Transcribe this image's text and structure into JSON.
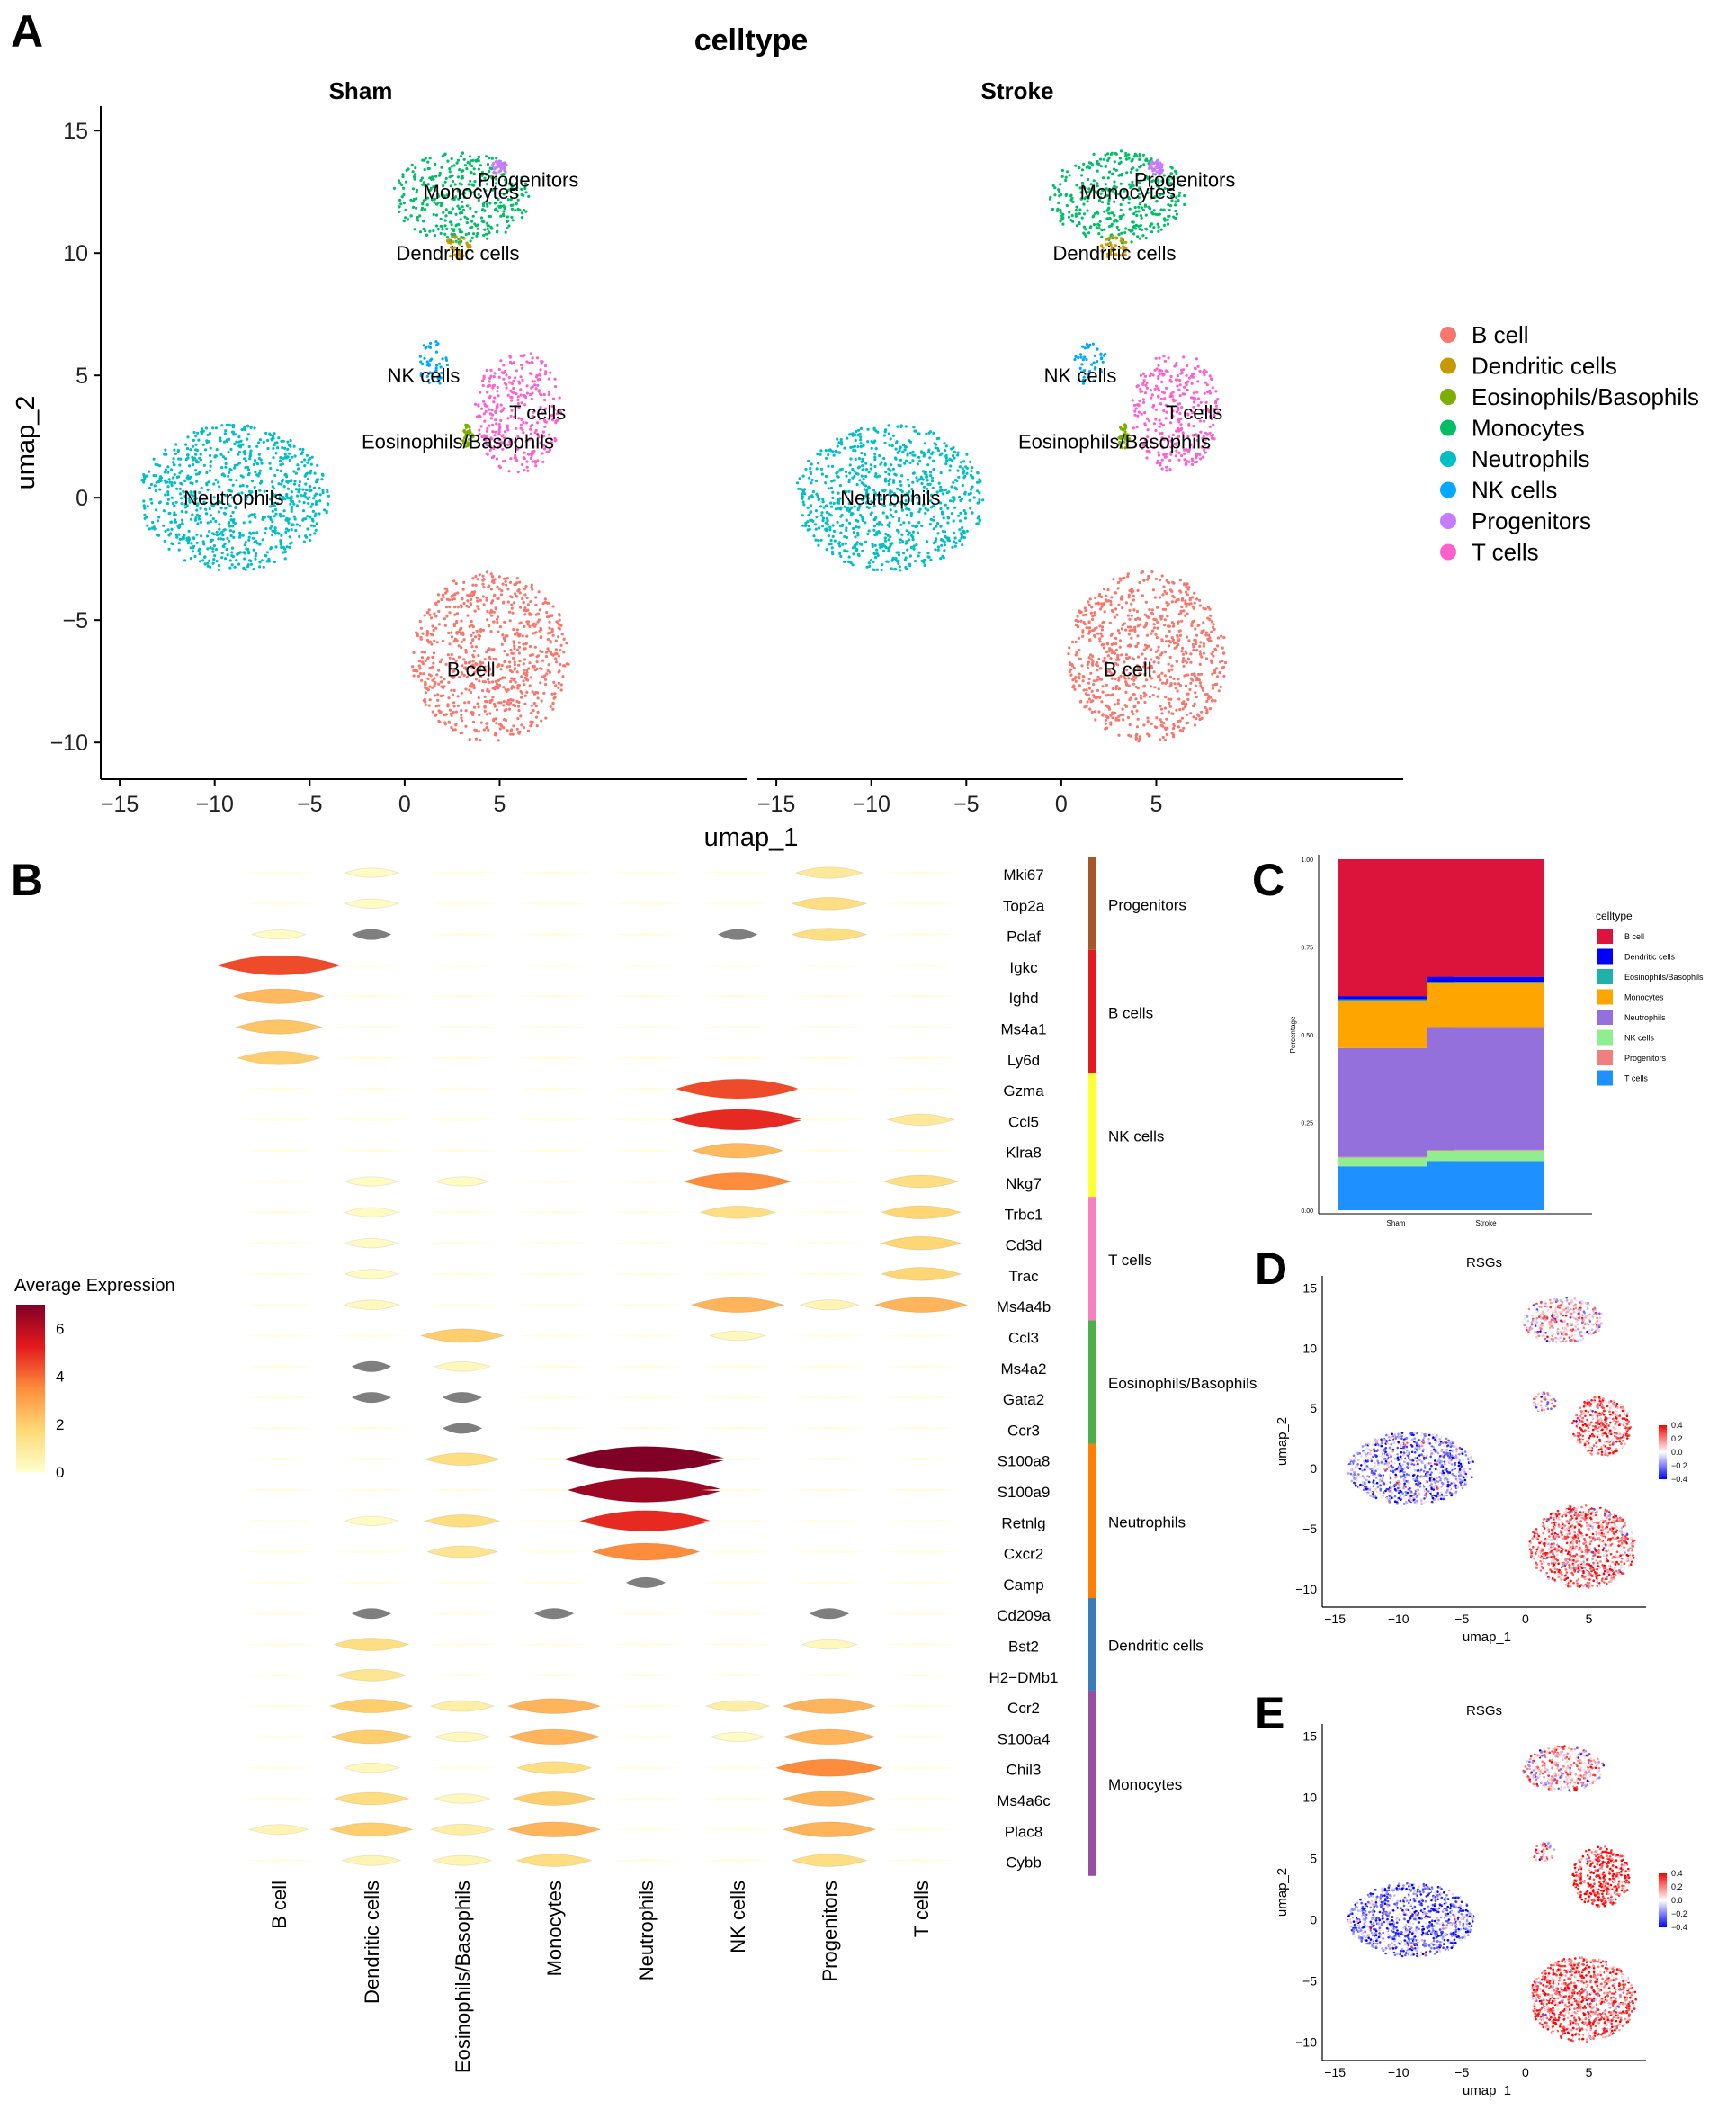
{
  "colors": {
    "B cell": "#F8766D",
    "Dendritic cells": "#C49A00",
    "Eosinophils/Basophils": "#7CAE00",
    "Monocytes": "#00BE67",
    "Neutrophils": "#00BFC4",
    "NK cells": "#00A9FF",
    "Progenitors": "#C77CFF",
    "T cells": "#FF61CC"
  },
  "chart_data": [
    {
      "panel": "A",
      "type": "scatter",
      "title": "celltype",
      "facets": [
        "Sham",
        "Stroke"
      ],
      "xlabel": "umap_1",
      "ylabel": "umap_2",
      "xlim": [
        -16,
        18
      ],
      "ylim": [
        -11.5,
        16
      ],
      "xticks": [
        "−15",
        "−10",
        "−5",
        "0",
        "5"
      ],
      "xtick_values": [
        -15,
        -10,
        -5,
        0,
        5
      ],
      "yticks": [
        "15",
        "10",
        "5",
        "0",
        "−5",
        "−10"
      ],
      "ytick_values": [
        15,
        10,
        5,
        0,
        -5,
        -10
      ],
      "legend": [
        "B cell",
        "Dendritic cells",
        "Eosinophils/Basophils",
        "Monocytes",
        "Neutrophils",
        "NK cells",
        "Progenitors",
        "T cells"
      ],
      "clusters": [
        {
          "name": "Neutrophils",
          "cx": -9,
          "cy": 0,
          "rx": 5,
          "ry": 3
        },
        {
          "name": "B cell",
          "cx": 4.5,
          "cy": -6.5,
          "rx": 4.2,
          "ry": 3.5
        },
        {
          "name": "Monocytes",
          "cx": 3,
          "cy": 12.3,
          "rx": 3.6,
          "ry": 1.9
        },
        {
          "name": "T cells",
          "cx": 6,
          "cy": 3.5,
          "rx": 2.3,
          "ry": 2.5
        },
        {
          "name": "NK cells",
          "cx": 1.5,
          "cy": 5.5,
          "rx": 0.9,
          "ry": 0.9
        },
        {
          "name": "Dendritic cells",
          "cx": 2.8,
          "cy": 10.2,
          "rx": 0.7,
          "ry": 0.5
        },
        {
          "name": "Eosinophils/Basophils",
          "cx": 3.3,
          "cy": 2.5,
          "rx": 0.3,
          "ry": 0.5
        },
        {
          "name": "Progenitors",
          "cx": 5,
          "cy": 13.5,
          "rx": 0.4,
          "ry": 0.3
        }
      ],
      "labels": [
        {
          "text": "Neutrophils",
          "x": -9,
          "y": 0
        },
        {
          "text": "B cell",
          "x": 3.5,
          "y": -7
        },
        {
          "text": "Monocytes",
          "x": 3.5,
          "y": 12.5
        },
        {
          "text": "Progenitors",
          "x": 6.5,
          "y": 13
        },
        {
          "text": "Dendritic cells",
          "x": 2.8,
          "y": 10
        },
        {
          "text": "NK cells",
          "x": 1,
          "y": 5
        },
        {
          "text": "T cells",
          "x": 7,
          "y": 3.5
        },
        {
          "text": "Eosinophils/Basophils",
          "x": 2.8,
          "y": 2.3
        }
      ]
    },
    {
      "panel": "B",
      "type": "violin",
      "legend_title": "Average Expression",
      "colorbar_ticks": [
        "6",
        "4",
        "2",
        "0"
      ],
      "colorbar_tick_values": [
        6,
        4,
        2,
        0
      ],
      "colorbar_range": [
        0,
        7
      ],
      "celltypes": [
        "B cell",
        "Dendritic cells",
        "Eosinophils/Basophils",
        "Monocytes",
        "Neutrophils",
        "NK cells",
        "Progenitors",
        "T cells"
      ],
      "genes": [
        "Mki67",
        "Top2a",
        "Pclaf",
        "Igkc",
        "Ighd",
        "Ms4a1",
        "Ly6d",
        "Gzma",
        "Ccl5",
        "Klra8",
        "Nkg7",
        "Trbc1",
        "Cd3d",
        "Trac",
        "Ms4a4b",
        "Ccl3",
        "Ms4a2",
        "Gata2",
        "Ccr3",
        "S100a8",
        "S100a9",
        "Retnlg",
        "Cxcr2",
        "Camp",
        "Cd209a",
        "Bst2",
        "H2−DMb1",
        "Ccr2",
        "S100a4",
        "Chil3",
        "Ms4a6c",
        "Plac8",
        "Cybb"
      ],
      "gene_labels_visible": [
        "Mki67",
        "Top2a",
        "Pclaf",
        "Igkc",
        "Ighd",
        "Ms4a1",
        "Ly6d",
        "Gzma",
        "Ccl5",
        "Klra8",
        "Nkg7",
        "Trbc1",
        "Cd3d",
        "Trac",
        "Ms4a4b",
        "Ccl3",
        "Ms4a2",
        "Gata2",
        "Ccr3",
        "S100a8",
        "S100a9",
        "Retnlg",
        "Cxcr2",
        "Camp",
        "Cd209a",
        "Bst2",
        "H2−DMb1",
        "Ccr2",
        "S100a4",
        "Chil3",
        "Ms4a6c",
        "Plac8",
        "Cybb"
      ],
      "groups": [
        {
          "name": "Progenitors",
          "start": 0,
          "end": 2,
          "color": "#A6572A"
        },
        {
          "name": "B cells",
          "start": 3,
          "end": 6,
          "color": "#E41A1C"
        },
        {
          "name": "NK cells",
          "start": 7,
          "end": 10,
          "color": "#FFFF33"
        },
        {
          "name": "T cells",
          "start": 11,
          "end": 14,
          "color": "#F781BF"
        },
        {
          "name": "Eosinophils/Basophils",
          "start": 15,
          "end": 18,
          "color": "#4DAF4A"
        },
        {
          "name": "Neutrophils",
          "start": 19,
          "end": 23,
          "color": "#FF7F00"
        },
        {
          "name": "Dendritic cells",
          "start": 24,
          "end": 26,
          "color": "#377EB8"
        },
        {
          "name": "Monocytes",
          "start": 27,
          "end": 32,
          "color": "#984EA3"
        }
      ],
      "expression": [
        [
          0,
          0.2,
          0,
          0,
          0,
          0,
          1.0,
          0
        ],
        [
          0,
          0.2,
          0,
          0,
          0,
          0,
          1.5,
          0
        ],
        [
          0.2,
          -1,
          0,
          0,
          0,
          -1,
          1.5,
          0
        ],
        [
          4.5,
          0,
          0,
          0,
          0,
          0,
          0,
          0
        ],
        [
          2.5,
          0,
          0,
          0,
          0,
          0,
          0,
          0
        ],
        [
          2.2,
          0,
          0,
          0,
          0,
          0,
          0,
          0
        ],
        [
          2.0,
          0,
          0,
          0,
          0,
          0,
          0,
          0
        ],
        [
          0,
          0,
          0,
          0,
          0,
          4.5,
          0,
          0
        ],
        [
          0,
          0,
          0,
          0,
          0,
          5.0,
          0,
          1.0
        ],
        [
          0,
          0,
          0,
          0,
          0,
          2.5,
          0,
          0
        ],
        [
          0,
          0.2,
          0.2,
          0,
          0,
          3.5,
          0,
          1.5
        ],
        [
          0,
          0.2,
          0,
          0,
          0,
          1.5,
          0,
          1.8
        ],
        [
          0,
          0.2,
          0,
          0,
          0,
          0,
          0,
          1.8
        ],
        [
          0,
          0.2,
          0,
          0,
          0,
          0,
          0,
          1.8
        ],
        [
          0,
          0.3,
          0,
          0,
          0,
          2.6,
          0.5,
          2.6
        ],
        [
          0,
          0,
          2.0,
          0,
          0,
          0.3,
          0,
          0
        ],
        [
          0,
          -1,
          0.3,
          0,
          0,
          0,
          0,
          0
        ],
        [
          0,
          -1,
          -1,
          0,
          0,
          0,
          0,
          0
        ],
        [
          0,
          0,
          -1,
          0,
          0,
          0,
          0,
          0
        ],
        [
          0,
          0,
          1.5,
          0,
          7.0,
          0,
          0,
          0
        ],
        [
          0,
          0,
          0,
          0,
          6.5,
          0,
          0,
          0
        ],
        [
          0,
          0.2,
          1.5,
          0,
          5.0,
          0,
          0,
          0
        ],
        [
          0,
          0,
          1.2,
          0,
          3.5,
          0,
          0,
          0
        ],
        [
          0,
          0,
          0,
          0,
          -1,
          0,
          0,
          0
        ],
        [
          0,
          -1,
          0,
          -1,
          0,
          0,
          -1,
          0
        ],
        [
          0,
          1.5,
          0,
          0,
          0,
          0,
          0.3,
          0
        ],
        [
          0,
          1.2,
          0,
          0,
          0,
          0,
          0,
          0
        ],
        [
          0,
          2.0,
          0.8,
          2.6,
          0,
          0.8,
          2.6,
          0
        ],
        [
          0,
          2.0,
          0.3,
          2.6,
          0,
          0.2,
          2.6,
          0
        ],
        [
          0,
          0.3,
          0,
          1.5,
          0,
          0,
          3.5,
          0
        ],
        [
          0,
          1.5,
          0.3,
          2.0,
          0,
          0,
          2.6,
          0
        ],
        [
          0.5,
          2.0,
          0.8,
          2.6,
          0,
          0,
          2.6,
          0
        ],
        [
          0,
          0.5,
          0.5,
          1.5,
          0,
          0,
          1.5,
          0
        ]
      ]
    },
    {
      "panel": "C",
      "type": "bar",
      "stacked": true,
      "categories": [
        "Sham",
        "Stroke"
      ],
      "ylabel": "Percentage",
      "ylim": [
        0,
        1
      ],
      "yticks": [
        "0.00",
        "0.25",
        "0.50",
        "0.75",
        "1.00"
      ],
      "ytick_values": [
        0,
        0.25,
        0.5,
        0.75,
        1.0
      ],
      "legend_title": "celltype",
      "series": [
        {
          "name": "T cells",
          "color": "#1E90FF",
          "values": [
            0.125,
            0.14
          ]
        },
        {
          "name": "NK cells",
          "color": "#90EE90",
          "values": [
            0.025,
            0.03
          ]
        },
        {
          "name": "Progenitors",
          "color": "#F08080",
          "values": [
            0.002,
            0.002
          ]
        },
        {
          "name": "Neutrophils",
          "color": "#9370DB",
          "values": [
            0.31,
            0.35
          ]
        },
        {
          "name": "Monocytes",
          "color": "#FFA500",
          "values": [
            0.135,
            0.125
          ]
        },
        {
          "name": "Eosinophils/Basophils",
          "color": "#20B2AA",
          "values": [
            0.004,
            0.004
          ]
        },
        {
          "name": "Dendritic cells",
          "color": "#0000FF",
          "values": [
            0.009,
            0.014
          ]
        },
        {
          "name": "B cell",
          "color": "#DC143C",
          "values": [
            0.39,
            0.335
          ]
        }
      ],
      "legend_order": [
        "B cell",
        "Dendritic cells",
        "Eosinophils/Basophils",
        "Monocytes",
        "Neutrophils",
        "NK cells",
        "Progenitors",
        "T cells"
      ]
    },
    {
      "panel": "D",
      "type": "scatter",
      "title": "RSGs",
      "xlabel": "umap_1",
      "ylabel": "umap_2",
      "xlim": [
        -16,
        9.5
      ],
      "ylim": [
        -11.5,
        16
      ],
      "xticks": [
        "−15",
        "−10",
        "−5",
        "0",
        "5"
      ],
      "xtick_values": [
        -15,
        -10,
        -5,
        0,
        5
      ],
      "yticks": [
        "15",
        "10",
        "5",
        "0",
        "−5",
        "−10"
      ],
      "ytick_values": [
        15,
        10,
        5,
        0,
        -5,
        -10
      ],
      "colorbar_ticks": [
        "0.4",
        "0.2",
        "0.0",
        "−0.2",
        "−0.4"
      ],
      "colorbar_tick_values": [
        0.4,
        0.2,
        0.0,
        -0.2,
        -0.4
      ],
      "cluster_scores": [
        {
          "name": "Neutrophils",
          "cx": -9,
          "cy": 0,
          "rx": 5,
          "ry": 3,
          "score": -0.15
        },
        {
          "name": "B cell",
          "cx": 4.5,
          "cy": -6.5,
          "rx": 4.2,
          "ry": 3.5,
          "score": 0.2
        },
        {
          "name": "Monocytes",
          "cx": 3,
          "cy": 12.3,
          "rx": 3.2,
          "ry": 1.9,
          "score": 0.05
        },
        {
          "name": "T cells",
          "cx": 6,
          "cy": 3.5,
          "rx": 2.3,
          "ry": 2.5,
          "score": 0.25
        },
        {
          "name": "NK cells",
          "cx": 1.5,
          "cy": 5.5,
          "rx": 0.9,
          "ry": 0.9,
          "score": 0.05
        }
      ]
    },
    {
      "panel": "E",
      "type": "scatter",
      "title": "RSGs",
      "xlabel": "umap_1",
      "ylabel": "umap_2",
      "xlim": [
        -16,
        9.5
      ],
      "ylim": [
        -11.5,
        16
      ],
      "xticks": [
        "−15",
        "−10",
        "−5",
        "0",
        "5"
      ],
      "xtick_values": [
        -15,
        -10,
        -5,
        0,
        5
      ],
      "yticks": [
        "15",
        "10",
        "5",
        "0",
        "−5",
        "−10"
      ],
      "ytick_values": [
        15,
        10,
        5,
        0,
        -5,
        -10
      ],
      "colorbar_ticks": [
        "0.4",
        "0.2",
        "0.0",
        "−0.2",
        "−0.4"
      ],
      "colorbar_tick_values": [
        0.4,
        0.2,
        0.0,
        -0.2,
        -0.4
      ],
      "cluster_scores": [
        {
          "name": "Neutrophils",
          "cx": -9,
          "cy": 0,
          "rx": 5,
          "ry": 3,
          "score": -0.2
        },
        {
          "name": "B cell",
          "cx": 4.5,
          "cy": -6.5,
          "rx": 4.2,
          "ry": 3.5,
          "score": 0.25
        },
        {
          "name": "Monocytes",
          "cx": 3,
          "cy": 12.3,
          "rx": 3.2,
          "ry": 1.9,
          "score": 0.08
        },
        {
          "name": "T cells",
          "cx": 6,
          "cy": 3.5,
          "rx": 2.3,
          "ry": 2.5,
          "score": 0.3
        },
        {
          "name": "NK cells",
          "cx": 1.5,
          "cy": 5.5,
          "rx": 0.9,
          "ry": 0.9,
          "score": 0.05
        }
      ]
    }
  ],
  "panel_labels": [
    "A",
    "B",
    "C",
    "D",
    "E"
  ]
}
